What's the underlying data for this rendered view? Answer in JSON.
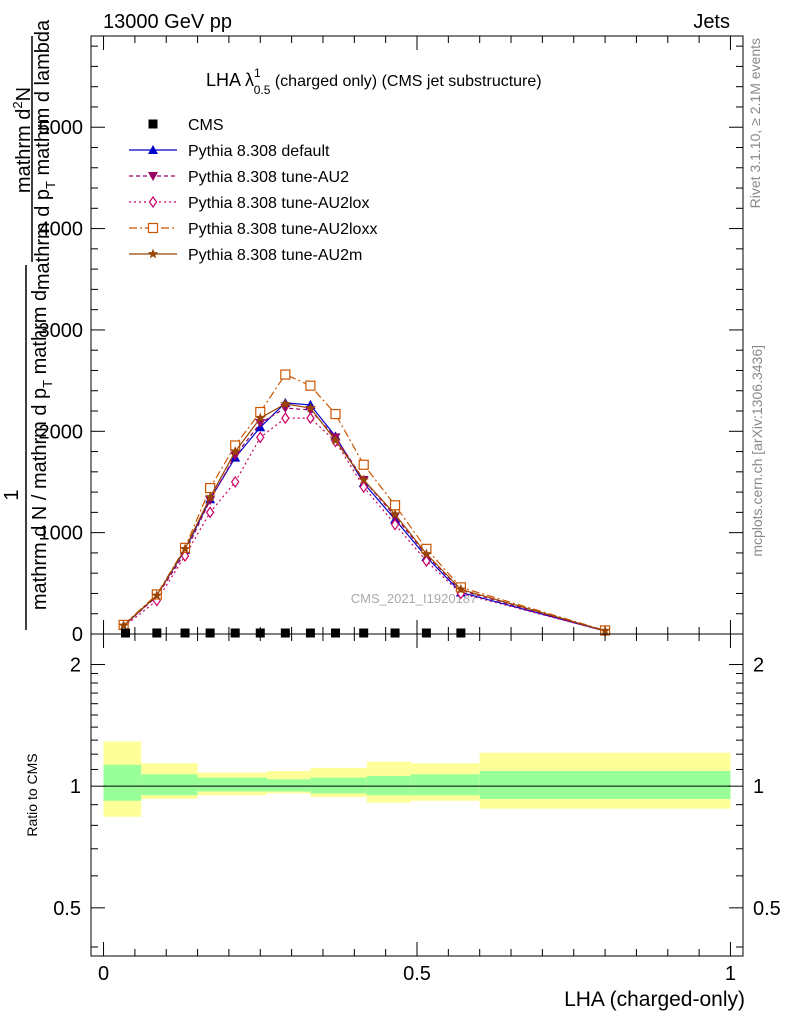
{
  "header": {
    "left": "13000 GeV pp",
    "right": "Jets"
  },
  "side_labels": {
    "rivet": "Rivet 3.1.10, ≥ 2.1M events",
    "mcplots": "mcplots.cern.ch [arXiv:1306.3436]"
  },
  "watermark": "CMS_2021_I1920187",
  "chart_data": [
    {
      "type": "line",
      "title": "LHA λ",
      "title_sup": "1",
      "title_sub": "0.5",
      "title_suffix": " (charged only) (CMS jet substructure)",
      "ylabel_numerator_one": "1",
      "ylabel_numerator": "mathrm d",
      "ylabel_numerator_sup": "2",
      "ylabel_numerator_rest": "N",
      "ylabel_denominator": "mathrm d p",
      "ylabel_denominator_sub": "T",
      "ylabel_denominator_rest": " mathrm d lambda",
      "ylabel_lower": "mathrm d N / mathrm d p",
      "ylabel_lower_sub": "T",
      "ylabel_lower_rest": " mathrm d",
      "xlim": [
        -0.02,
        1.02
      ],
      "ylim": [
        0,
        5900
      ],
      "y_ticks": [
        0,
        1000,
        2000,
        3000,
        4000,
        5000
      ],
      "y_tick_labels": [
        "0",
        "1000",
        "2000",
        "3000",
        "4000",
        "5000"
      ],
      "grid": false,
      "legend_position": "top-left",
      "cms_points": {
        "name": "CMS",
        "x": [
          0.035,
          0.085,
          0.13,
          0.17,
          0.21,
          0.25,
          0.29,
          0.33,
          0.37,
          0.415,
          0.465,
          0.515,
          0.57
        ],
        "y": [
          0,
          0,
          0,
          0,
          0,
          0,
          0,
          0,
          0,
          0,
          0,
          0,
          0
        ]
      },
      "series": [
        {
          "name": "Pythia 8.308 default",
          "color": "#0000cc",
          "marker": "triangle-up",
          "dash": "",
          "x": [
            0.032,
            0.085,
            0.13,
            0.17,
            0.21,
            0.25,
            0.29,
            0.33,
            0.37,
            0.415,
            0.465,
            0.515,
            0.57,
            0.8
          ],
          "y": [
            80,
            380,
            830,
            1330,
            1740,
            2040,
            2280,
            2260,
            1950,
            1490,
            1130,
            760,
            410,
            30
          ]
        },
        {
          "name": "Pythia 8.308 tune-AU2",
          "color": "#990066",
          "marker": "triangle-down",
          "dash": "4,3",
          "x": [
            0.032,
            0.085,
            0.13,
            0.17,
            0.21,
            0.25,
            0.29,
            0.33,
            0.37,
            0.415,
            0.465,
            0.515,
            0.57,
            0.8
          ],
          "y": [
            80,
            370,
            800,
            1320,
            1760,
            2080,
            2230,
            2210,
            1940,
            1520,
            1160,
            780,
            430,
            30
          ]
        },
        {
          "name": "Pythia 8.308 tune-AU2lox",
          "color": "#cc0066",
          "marker": "diamond-open",
          "dash": "2,3",
          "x": [
            0.032,
            0.085,
            0.13,
            0.17,
            0.21,
            0.25,
            0.29,
            0.33,
            0.37,
            0.415,
            0.465,
            0.515,
            0.57,
            0.8
          ],
          "y": [
            70,
            330,
            770,
            1200,
            1500,
            1940,
            2130,
            2130,
            1900,
            1450,
            1080,
            720,
            400,
            30
          ]
        },
        {
          "name": "Pythia 8.308 tune-AU2loxx",
          "color": "#cc5500",
          "marker": "square-open",
          "dash": "8,3,2,3",
          "x": [
            0.032,
            0.085,
            0.13,
            0.17,
            0.21,
            0.25,
            0.29,
            0.33,
            0.37,
            0.415,
            0.465,
            0.515,
            0.57,
            0.8
          ],
          "y": [
            90,
            390,
            850,
            1440,
            1860,
            2190,
            2560,
            2450,
            2170,
            1670,
            1270,
            840,
            460,
            35
          ]
        },
        {
          "name": "Pythia 8.308 tune-AU2m",
          "color": "#994400",
          "marker": "star",
          "dash": "",
          "x": [
            0.032,
            0.085,
            0.13,
            0.17,
            0.21,
            0.25,
            0.29,
            0.33,
            0.37,
            0.415,
            0.465,
            0.515,
            0.57,
            0.8
          ],
          "y": [
            85,
            380,
            840,
            1350,
            1800,
            2130,
            2270,
            2230,
            1910,
            1520,
            1180,
            790,
            440,
            32
          ]
        }
      ]
    },
    {
      "type": "area",
      "ylabel": "Ratio to CMS",
      "xlabel": "LHA (charged-only)",
      "xlim": [
        -0.02,
        1.02
      ],
      "ylim": [
        0.38,
        2.38
      ],
      "y_ticks": [
        0.5,
        1,
        2
      ],
      "y_tick_labels": [
        "0.5",
        "1",
        "2"
      ],
      "x_ticks": [
        0,
        0.5,
        1
      ],
      "x_tick_labels": [
        "0",
        "0.5",
        "1"
      ],
      "reference_line": 1,
      "bands": {
        "bin_edges": [
          0,
          0.06,
          0.15,
          0.26,
          0.33,
          0.42,
          0.49,
          0.6,
          1.0
        ],
        "green_low": [
          0.92,
          0.95,
          0.97,
          0.97,
          0.96,
          0.95,
          0.95,
          0.93
        ],
        "green_high": [
          1.13,
          1.07,
          1.05,
          1.04,
          1.05,
          1.06,
          1.07,
          1.09
        ],
        "yellow_low": [
          0.84,
          0.93,
          0.95,
          0.96,
          0.94,
          0.91,
          0.92,
          0.88
        ],
        "yellow_high": [
          1.29,
          1.14,
          1.08,
          1.09,
          1.11,
          1.15,
          1.14,
          1.21
        ],
        "green_color": "#99ff99",
        "yellow_color": "#ffff99"
      }
    }
  ]
}
